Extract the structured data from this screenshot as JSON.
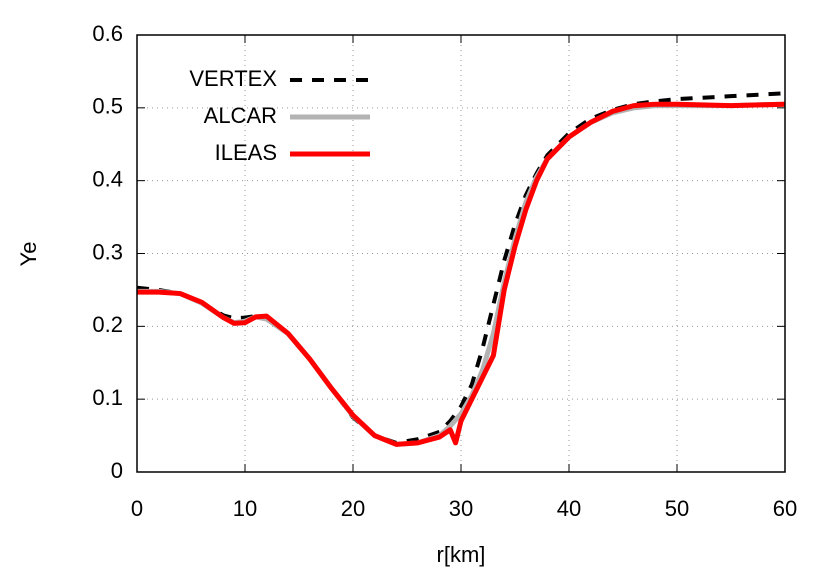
{
  "chart_data": {
    "type": "line",
    "x_label": "r[km]",
    "y_label": "Ye",
    "xlim": [
      0,
      60
    ],
    "xticks": [
      0,
      10,
      20,
      30,
      40,
      50,
      60
    ],
    "ylim": [
      0,
      0.6
    ],
    "yticks": [
      0,
      0.1,
      0.2,
      0.3,
      0.4,
      0.5,
      0.6
    ],
    "grid": true,
    "legend": "upper left",
    "series": [
      {
        "name": "VERTEX",
        "color": "#000000",
        "style": "dashed",
        "x": [
          0,
          2,
          4,
          6,
          8,
          9,
          10,
          11,
          12,
          14,
          16,
          18,
          20,
          22,
          24,
          26,
          28,
          29,
          30,
          31,
          32,
          33,
          34,
          35,
          36,
          37,
          38,
          40,
          42,
          44,
          46,
          48,
          50,
          55,
          60
        ],
        "values": [
          0.253,
          0.25,
          0.245,
          0.232,
          0.215,
          0.211,
          0.212,
          0.214,
          0.21,
          0.19,
          0.155,
          0.115,
          0.075,
          0.05,
          0.04,
          0.045,
          0.055,
          0.07,
          0.09,
          0.12,
          0.17,
          0.23,
          0.29,
          0.34,
          0.38,
          0.41,
          0.435,
          0.465,
          0.485,
          0.497,
          0.505,
          0.509,
          0.512,
          0.516,
          0.52
        ]
      },
      {
        "name": "ALCAR",
        "color": "#b3b3b3",
        "style": "solid",
        "x": [
          0,
          2,
          4,
          6,
          8,
          9,
          10,
          11,
          12,
          14,
          16,
          18,
          20,
          22,
          24,
          26,
          28,
          29,
          30,
          31,
          32,
          33,
          34,
          35,
          36,
          37,
          38,
          40,
          42,
          44,
          46,
          48,
          50,
          55,
          60
        ],
        "values": [
          0.248,
          0.248,
          0.245,
          0.232,
          0.212,
          0.205,
          0.207,
          0.213,
          0.21,
          0.19,
          0.155,
          0.115,
          0.077,
          0.05,
          0.038,
          0.04,
          0.05,
          0.063,
          0.08,
          0.105,
          0.14,
          0.19,
          0.26,
          0.32,
          0.37,
          0.405,
          0.43,
          0.46,
          0.48,
          0.493,
          0.5,
          0.503,
          0.503,
          0.503,
          0.505
        ]
      },
      {
        "name": "ILEAS",
        "color": "#ff0000",
        "style": "solid",
        "x": [
          0,
          2,
          4,
          6,
          8,
          9,
          10,
          11,
          12,
          14,
          16,
          18,
          20,
          22,
          24,
          26,
          28,
          29,
          29.5,
          30,
          31,
          32,
          33,
          34,
          35,
          36,
          37,
          38,
          40,
          42,
          44,
          46,
          48,
          50,
          55,
          60
        ],
        "values": [
          0.247,
          0.247,
          0.245,
          0.233,
          0.212,
          0.204,
          0.205,
          0.213,
          0.214,
          0.19,
          0.155,
          0.115,
          0.078,
          0.05,
          0.038,
          0.04,
          0.048,
          0.058,
          0.04,
          0.07,
          0.1,
          0.13,
          0.16,
          0.25,
          0.31,
          0.36,
          0.4,
          0.43,
          0.46,
          0.48,
          0.495,
          0.503,
          0.505,
          0.505,
          0.503,
          0.505
        ]
      }
    ]
  }
}
